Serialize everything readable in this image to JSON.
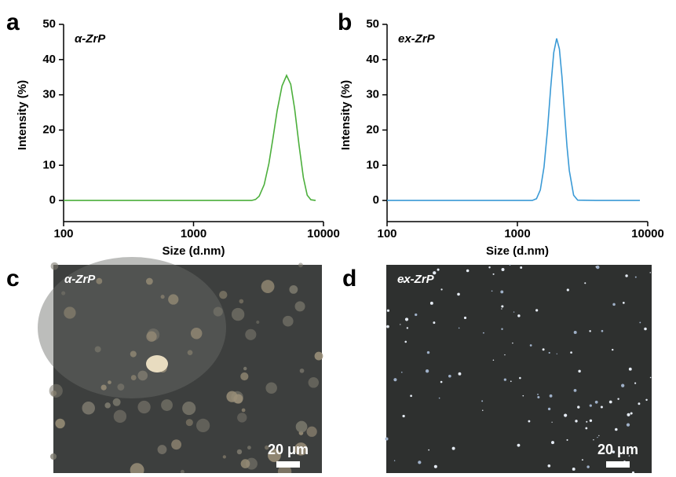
{
  "chart_data": [
    {
      "type": "line",
      "panel_label": "a",
      "annotation": "α-ZrP",
      "xlabel": "Size (d.nm)",
      "ylabel": "Intensity (%)",
      "xscale": "log",
      "xlim": [
        100,
        10000
      ],
      "xticks": [
        100,
        1000,
        10000
      ],
      "ylim": [
        -6,
        50
      ],
      "yticks": [
        0,
        10,
        20,
        30,
        40,
        50
      ],
      "color": "#4caf3c",
      "x": [
        100,
        500,
        1000,
        2000,
        2800,
        3000,
        3200,
        3500,
        3800,
        4100,
        4400,
        4800,
        5200,
        5600,
        6000,
        6500,
        7000,
        7500,
        8000,
        8700
      ],
      "values": [
        0,
        0,
        0,
        0,
        0,
        0.3,
        1.2,
        4.5,
        10.5,
        18,
        25.5,
        32.5,
        35.5,
        33,
        26,
        15.5,
        6.5,
        1.5,
        0.2,
        0
      ]
    },
    {
      "type": "line",
      "panel_label": "b",
      "annotation": "ex-ZrP",
      "xlabel": "Size (d.nm)",
      "ylabel": "Intensity (%)",
      "xscale": "log",
      "xlim": [
        100,
        10000
      ],
      "xticks": [
        100,
        1000,
        10000
      ],
      "ylim": [
        -6,
        50
      ],
      "yticks": [
        0,
        10,
        20,
        30,
        40,
        50
      ],
      "color": "#3a9ad6",
      "x": [
        100,
        500,
        1000,
        1300,
        1400,
        1500,
        1600,
        1700,
        1800,
        1900,
        2000,
        2100,
        2200,
        2300,
        2400,
        2500,
        2700,
        2900,
        4000,
        8700
      ],
      "values": [
        0,
        0,
        0,
        0,
        0.5,
        3,
        9.5,
        20,
        32,
        42,
        46,
        43,
        35,
        25,
        15.5,
        8.5,
        1.5,
        0.1,
        0,
        0
      ]
    }
  ],
  "panels": [
    {
      "label": "c",
      "annotation": "α-ZrP",
      "scale_bar": "20 μm"
    },
    {
      "label": "d",
      "annotation": "ex-ZrP",
      "scale_bar": "20 μm"
    }
  ]
}
